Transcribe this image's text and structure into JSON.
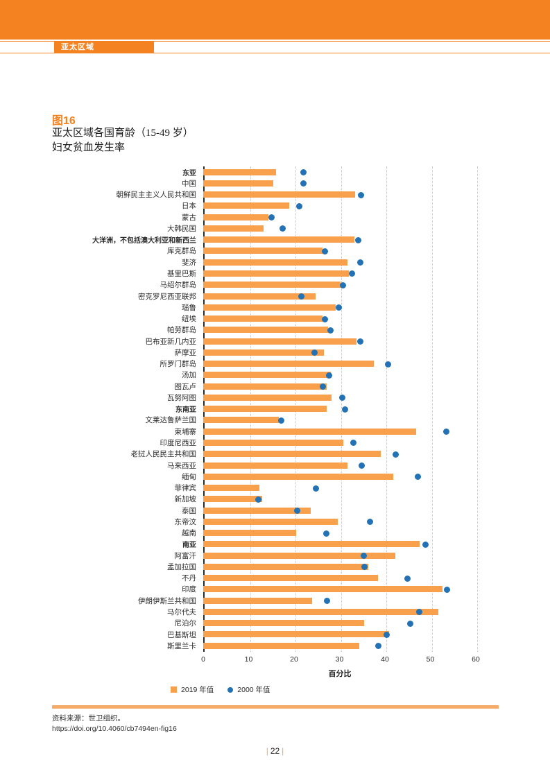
{
  "page": {
    "header_tab": "亚太区域",
    "figure_label": "图16",
    "title_line1": "亚太区域各国育龄（15-49 岁）",
    "title_line2": "妇女贫血发生率",
    "source_label": "资料来源：世卫组织。",
    "source_url": "https://doi.org/10.4060/cb7494en-fig16",
    "page_number": "22",
    "pipe": "|"
  },
  "colors": {
    "header_orange": "#F58220",
    "bar_orange": "#F9A04C",
    "dot_blue": "#2272B5",
    "divider_orange": "#F5AB69"
  },
  "chart_data": {
    "type": "bar",
    "orientation": "horizontal",
    "title": "亚太区域各国育龄（15-49 岁）妇女贫血发生率",
    "xlabel": "百分比",
    "xlim": [
      0,
      65
    ],
    "ticks": [
      0,
      10,
      20,
      30,
      40,
      50,
      60
    ],
    "grid": "dotted-vertical",
    "legend_position": "bottom",
    "legend": [
      {
        "label": "2019 年值",
        "marker": "square",
        "color": "#F9A04C"
      },
      {
        "label": "2000 年值",
        "marker": "dot",
        "color": "#2272B5"
      }
    ],
    "rows": [
      {
        "label": "东亚",
        "bold": true,
        "v2019": 16.0,
        "v2000": 22.0
      },
      {
        "label": "中国",
        "bold": false,
        "v2019": 15.4,
        "v2000": 22.0
      },
      {
        "label": "朝鲜民主主义人民共和国",
        "bold": false,
        "v2019": 33.5,
        "v2000": 34.7
      },
      {
        "label": "日本",
        "bold": false,
        "v2019": 18.9,
        "v2000": 21.1
      },
      {
        "label": "蒙古",
        "bold": false,
        "v2019": 14.4,
        "v2000": 15.1
      },
      {
        "label": "大韩民国",
        "bold": false,
        "v2019": 13.3,
        "v2000": 17.4
      },
      {
        "label": "大洋洲，不包括澳大利亚和新西兰",
        "bold": true,
        "v2019": 33.3,
        "v2000": 34.1
      },
      {
        "label": "库克群岛",
        "bold": false,
        "v2019": 26.3,
        "v2000": 26.8
      },
      {
        "label": "斐济",
        "bold": false,
        "v2019": 31.8,
        "v2000": 34.6
      },
      {
        "label": "基里巴斯",
        "bold": false,
        "v2019": 32.0,
        "v2000": 32.8
      },
      {
        "label": "马绍尔群岛",
        "bold": false,
        "v2019": 30.2,
        "v2000": 30.7
      },
      {
        "label": "密克罗尼西亚联邦",
        "bold": false,
        "v2019": 24.8,
        "v2000": 21.6
      },
      {
        "label": "瑙鲁",
        "bold": false,
        "v2019": 29.2,
        "v2000": 29.8
      },
      {
        "label": "纽埃",
        "bold": false,
        "v2019": 26.3,
        "v2000": 26.8
      },
      {
        "label": "帕劳群岛",
        "bold": false,
        "v2019": 27.4,
        "v2000": 28.0
      },
      {
        "label": "巴布亚新几内亚",
        "bold": false,
        "v2019": 33.8,
        "v2000": 34.6
      },
      {
        "label": "萨摩亚",
        "bold": false,
        "v2019": 26.6,
        "v2000": 24.5
      },
      {
        "label": "所罗门群岛",
        "bold": false,
        "v2019": 37.6,
        "v2000": 40.7
      },
      {
        "label": "汤加",
        "bold": false,
        "v2019": 28.1,
        "v2000": 27.7
      },
      {
        "label": "图瓦卢",
        "bold": false,
        "v2019": 27.2,
        "v2000": 26.4
      },
      {
        "label": "瓦努阿图",
        "bold": false,
        "v2019": 28.2,
        "v2000": 30.6
      },
      {
        "label": "东南亚",
        "bold": true,
        "v2019": 27.1,
        "v2000": 31.2
      },
      {
        "label": "文莱达鲁萨兰国",
        "bold": false,
        "v2019": 16.6,
        "v2000": 17.1
      },
      {
        "label": "柬埔寨",
        "bold": false,
        "v2019": 46.8,
        "v2000": 53.5
      },
      {
        "label": "印度尼西亚",
        "bold": false,
        "v2019": 30.8,
        "v2000": 33.1
      },
      {
        "label": "老挝人民民主共和国",
        "bold": false,
        "v2019": 39.1,
        "v2000": 42.3
      },
      {
        "label": "马来西亚",
        "bold": false,
        "v2019": 31.8,
        "v2000": 34.9
      },
      {
        "label": "缅甸",
        "bold": false,
        "v2019": 41.8,
        "v2000": 47.2
      },
      {
        "label": "菲律宾",
        "bold": false,
        "v2019": 12.3,
        "v2000": 24.8
      },
      {
        "label": "新加坡",
        "bold": false,
        "v2019": 12.9,
        "v2000": 12.2
      },
      {
        "label": "泰国",
        "bold": false,
        "v2019": 23.6,
        "v2000": 20.7
      },
      {
        "label": "东帝汶",
        "bold": false,
        "v2019": 29.6,
        "v2000": 36.7
      },
      {
        "label": "越南",
        "bold": false,
        "v2019": 20.5,
        "v2000": 27.1
      },
      {
        "label": "南亚",
        "bold": true,
        "v2019": 47.7,
        "v2000": 49.0
      },
      {
        "label": "阿富汗",
        "bold": false,
        "v2019": 42.3,
        "v2000": 35.3
      },
      {
        "label": "孟加拉国",
        "bold": false,
        "v2019": 36.4,
        "v2000": 35.5
      },
      {
        "label": "不丹",
        "bold": false,
        "v2019": 38.4,
        "v2000": 44.9
      },
      {
        "label": "印度",
        "bold": false,
        "v2019": 52.7,
        "v2000": 53.7
      },
      {
        "label": "伊朗伊斯兰共和国",
        "bold": false,
        "v2019": 24.0,
        "v2000": 27.2
      },
      {
        "label": "马尔代夫",
        "bold": false,
        "v2019": 51.7,
        "v2000": 47.6
      },
      {
        "label": "尼泊尔",
        "bold": false,
        "v2019": 35.4,
        "v2000": 45.5
      },
      {
        "label": "巴基斯坦",
        "bold": false,
        "v2019": 40.9,
        "v2000": 40.4
      },
      {
        "label": "斯里兰卡",
        "bold": false,
        "v2019": 34.4,
        "v2000": 38.6
      }
    ]
  }
}
